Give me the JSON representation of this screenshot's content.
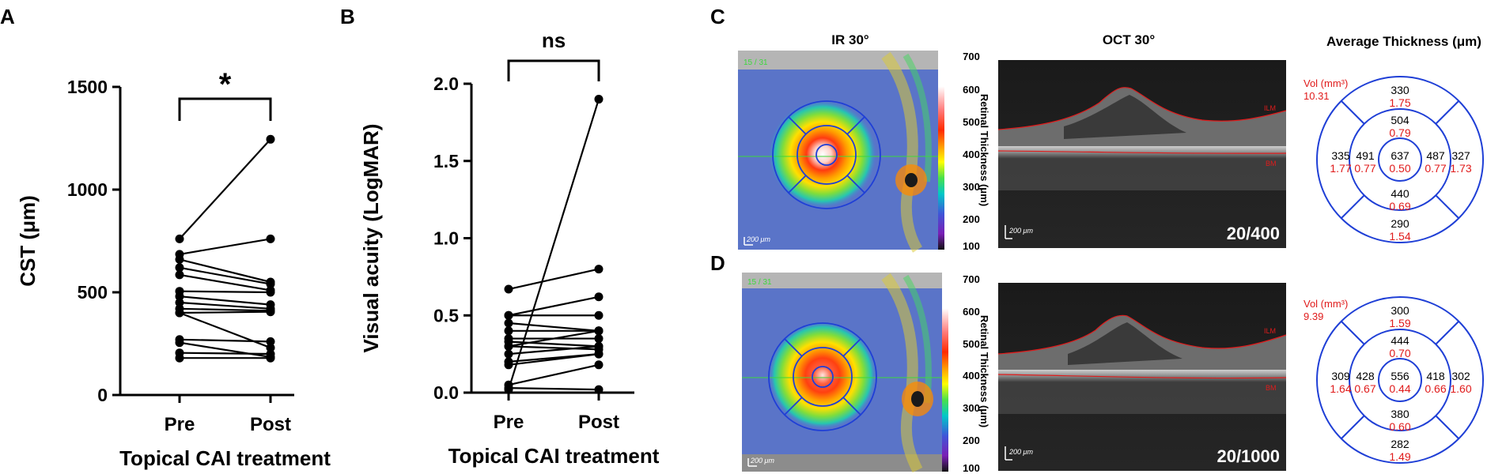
{
  "colors": {
    "axis": "#000000",
    "ring": "#1f3fd6",
    "vol_red": "#e01b1b",
    "segmentation": "#e01b1b",
    "ir_label_green": "#3cd83c"
  },
  "chart_data": [
    {
      "type": "line",
      "panel": "A",
      "title": "",
      "xlabel": "Topical CAI treatment",
      "ylabel": "CST (μm)",
      "categories": [
        "Pre",
        "Post"
      ],
      "ylim": [
        0,
        1500
      ],
      "yticks": [
        0,
        500,
        1000,
        1500
      ],
      "ytick_labels": [
        "0",
        "500",
        "1000",
        "1500"
      ],
      "significance": "*",
      "series": [
        {
          "name": "patient-1",
          "values": [
            760,
            1245
          ]
        },
        {
          "name": "patient-2",
          "values": [
            685,
            760
          ]
        },
        {
          "name": "patient-3",
          "values": [
            660,
            550
          ]
        },
        {
          "name": "patient-4",
          "values": [
            620,
            540
          ]
        },
        {
          "name": "patient-5",
          "values": [
            585,
            510
          ]
        },
        {
          "name": "patient-6",
          "values": [
            505,
            500
          ]
        },
        {
          "name": "patient-7",
          "values": [
            480,
            440
          ]
        },
        {
          "name": "patient-8",
          "values": [
            450,
            420
          ]
        },
        {
          "name": "patient-9",
          "values": [
            420,
            410
          ]
        },
        {
          "name": "patient-10",
          "values": [
            400,
            405
          ]
        },
        {
          "name": "patient-11",
          "values": [
            400,
            230
          ]
        },
        {
          "name": "patient-12",
          "values": [
            270,
            260
          ]
        },
        {
          "name": "patient-13",
          "values": [
            255,
            185
          ]
        },
        {
          "name": "patient-14",
          "values": [
            205,
            200
          ]
        },
        {
          "name": "patient-15",
          "values": [
            180,
            180
          ]
        }
      ]
    },
    {
      "type": "line",
      "panel": "B",
      "title": "",
      "xlabel": "Topical CAI treatment",
      "ylabel": "Visual acuity (LogMAR)",
      "categories": [
        "Pre",
        "Post"
      ],
      "ylim": [
        0,
        2.0
      ],
      "yticks": [
        0,
        0.5,
        1.0,
        1.5,
        2.0
      ],
      "ytick_labels": [
        "0.0",
        "0.5",
        "1.0",
        "1.5",
        "2.0"
      ],
      "significance": "ns",
      "series": [
        {
          "name": "patient-1",
          "values": [
            0.67,
            0.8
          ]
        },
        {
          "name": "patient-2",
          "values": [
            0.5,
            0.62
          ]
        },
        {
          "name": "patient-3",
          "values": [
            0.5,
            0.5
          ]
        },
        {
          "name": "patient-4",
          "values": [
            0.45,
            0.4
          ]
        },
        {
          "name": "patient-5",
          "values": [
            0.4,
            0.4
          ]
        },
        {
          "name": "patient-6",
          "values": [
            0.35,
            0.35
          ]
        },
        {
          "name": "patient-7",
          "values": [
            0.33,
            0.3
          ]
        },
        {
          "name": "patient-8",
          "values": [
            0.3,
            0.4
          ]
        },
        {
          "name": "patient-9",
          "values": [
            0.3,
            0.28
          ]
        },
        {
          "name": "patient-10",
          "values": [
            0.25,
            0.3
          ]
        },
        {
          "name": "patient-11",
          "values": [
            0.2,
            0.25
          ]
        },
        {
          "name": "patient-12",
          "values": [
            0.18,
            0.25
          ]
        },
        {
          "name": "patient-13",
          "values": [
            0.05,
            0.18
          ]
        },
        {
          "name": "patient-14",
          "values": [
            0.03,
            0.02
          ]
        },
        {
          "name": "patient-15",
          "values": [
            0.02,
            1.9
          ]
        }
      ]
    }
  ],
  "panel_labels": {
    "a": "A",
    "b": "B",
    "c": "C",
    "d": "D"
  },
  "headers": {
    "ir": "IR 30°",
    "oct": "OCT 30°",
    "thickness": "Average Thickness (μm)"
  },
  "colorbar": {
    "label": "Retinal Thickness (μm)",
    "ticks": [
      "700",
      "600",
      "500",
      "400",
      "300",
      "200",
      "100"
    ],
    "stops": [
      "#ffffff",
      "#ffffff",
      "#ff6a6a",
      "#ff2a00",
      "#ffb400",
      "#ffff00",
      "#49e04b",
      "#00c8c8",
      "#3f55d8",
      "#7a1fb6",
      "#000000"
    ]
  },
  "panel_c": {
    "ir_counter": "15 / 31",
    "scale_ir": "200 μm",
    "scale_oct": "200 μm",
    "acuity": "20/400",
    "ilm": "ILM",
    "bm": "BM",
    "vol_label": "Vol (mm³)",
    "vol_total": "10.31",
    "sectors": {
      "superior_outer": {
        "thickness": "330",
        "volume": "1.75"
      },
      "superior_inner": {
        "thickness": "504",
        "volume": "0.79"
      },
      "temporal_outer": {
        "thickness": "335",
        "volume": "1.77"
      },
      "temporal_inner": {
        "thickness": "491",
        "volume": "0.77"
      },
      "center": {
        "thickness": "637",
        "volume": "0.50"
      },
      "nasal_inner": {
        "thickness": "487",
        "volume": "0.77"
      },
      "nasal_outer": {
        "thickness": "327",
        "volume": "1.73"
      },
      "inferior_inner": {
        "thickness": "440",
        "volume": "0.69"
      },
      "inferior_outer": {
        "thickness": "290",
        "volume": "1.54"
      }
    }
  },
  "panel_d": {
    "ir_counter": "15 / 31",
    "scale_ir": "200 μm",
    "scale_oct": "200 μm",
    "acuity": "20/1000",
    "ilm": "ILM",
    "bm": "BM",
    "vol_label": "Vol (mm³)",
    "vol_total": "9.39",
    "sectors": {
      "superior_outer": {
        "thickness": "300",
        "volume": "1.59"
      },
      "superior_inner": {
        "thickness": "444",
        "volume": "0.70"
      },
      "temporal_outer": {
        "thickness": "309",
        "volume": "1.64"
      },
      "temporal_inner": {
        "thickness": "428",
        "volume": "0.67"
      },
      "center": {
        "thickness": "556",
        "volume": "0.44"
      },
      "nasal_inner": {
        "thickness": "418",
        "volume": "0.66"
      },
      "nasal_outer": {
        "thickness": "302",
        "volume": "1.60"
      },
      "inferior_inner": {
        "thickness": "380",
        "volume": "0.60"
      },
      "inferior_outer": {
        "thickness": "282",
        "volume": "1.49"
      }
    }
  }
}
